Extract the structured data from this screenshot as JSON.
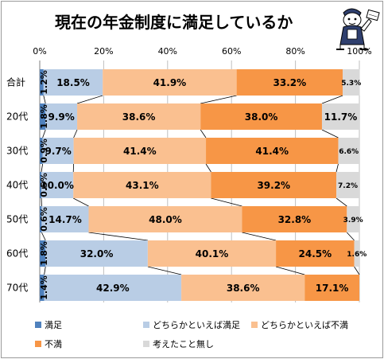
{
  "chart_data": {
    "type": "bar",
    "orientation": "horizontal",
    "stacked": true,
    "title": "現在の年金制度に満足しているか",
    "categories": [
      "合計",
      "20代",
      "30代",
      "40代",
      "50代",
      "60代",
      "70代"
    ],
    "xlim": [
      0,
      100
    ],
    "x_ticks": [
      "0%",
      "20%",
      "40%",
      "60%",
      "80%",
      "100%"
    ],
    "grid": true,
    "legend_position": "bottom",
    "series": [
      {
        "name": "満足",
        "color": "#4f81bd",
        "values": [
          1.2,
          1.8,
          0.9,
          0.5,
          0.6,
          1.8,
          1.4
        ],
        "labels": [
          "1.2%",
          "1.8%",
          "0.9%",
          "0.5%",
          "0.6%",
          "1.8%",
          "1.4%"
        ]
      },
      {
        "name": "どちらかといえば満足",
        "color": "#b9cde5",
        "values": [
          18.5,
          9.9,
          9.7,
          10.0,
          14.7,
          32.0,
          42.9
        ],
        "labels": [
          "18.5%",
          "9.9%",
          "9.7%",
          "10.0%",
          "14.7%",
          "32.0%",
          "42.9%"
        ]
      },
      {
        "name": "どちらかといえば不満",
        "color": "#fac090",
        "values": [
          41.9,
          38.6,
          41.4,
          43.1,
          48.0,
          40.1,
          38.6
        ],
        "labels": [
          "41.9%",
          "38.6%",
          "41.4%",
          "43.1%",
          "48.0%",
          "40.1%",
          "38.6%"
        ]
      },
      {
        "name": "不満",
        "color": "#f79646",
        "values": [
          33.2,
          38.0,
          41.4,
          39.2,
          32.8,
          24.5,
          17.1
        ],
        "labels": [
          "33.2%",
          "38.0%",
          "41.4%",
          "39.2%",
          "32.8%",
          "24.5%",
          "17.1%"
        ]
      },
      {
        "name": "考えたこと無し",
        "color": "#d9d9d9",
        "values": [
          5.3,
          11.7,
          6.6,
          7.2,
          3.9,
          1.6,
          0.0
        ],
        "labels": [
          "5.3%",
          "11.7%",
          "6.6%",
          "7.2%",
          "3.9%",
          "1.6%",
          ""
        ]
      }
    ]
  },
  "mascot": {
    "icon": "mascot-character-icon"
  }
}
